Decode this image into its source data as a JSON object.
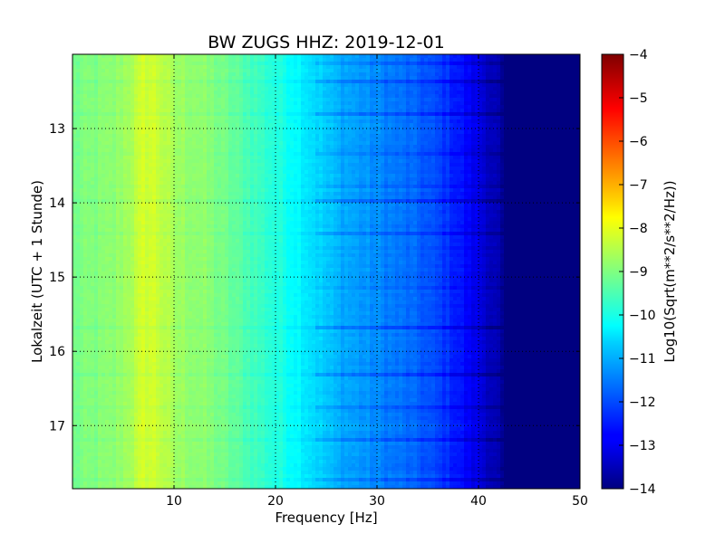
{
  "chart_data": {
    "type": "heatmap",
    "title": "BW ZUGS HHZ: 2019-12-01",
    "xlabel": "Frequency [Hz]",
    "ylabel": "Lokalzeit (UTC + 1 Stunde)",
    "xlim": [
      0,
      50
    ],
    "ylim": [
      12.0,
      17.85
    ],
    "y_inverted": true,
    "x_ticks": [
      10,
      20,
      30,
      40,
      50
    ],
    "y_ticks": [
      13,
      14,
      15,
      16,
      17
    ],
    "grid": true,
    "colormap": "jet",
    "colorbar": {
      "label": "Log10(Sqrt(m**2/s**2/Hz))",
      "range": [
        -14,
        -4
      ],
      "ticks": [
        -4,
        -5,
        -6,
        -7,
        -8,
        -9,
        -10,
        -11,
        -12,
        -13,
        -14
      ]
    },
    "frequency_profile": {
      "freq_hz": [
        0,
        2,
        4,
        6,
        7,
        8,
        9,
        10,
        12,
        14,
        16,
        18,
        20,
        22,
        24,
        26,
        28,
        30,
        32,
        34,
        36,
        38,
        39,
        40,
        41,
        42,
        42.5,
        45,
        50
      ],
      "log10_amp": [
        -9.1,
        -9.0,
        -8.9,
        -8.5,
        -8.2,
        -8.2,
        -8.4,
        -8.7,
        -8.8,
        -9.0,
        -9.3,
        -9.6,
        -9.9,
        -10.2,
        -10.6,
        -11.0,
        -11.2,
        -11.4,
        -11.6,
        -11.8,
        -12.1,
        -12.5,
        -12.8,
        -13.0,
        -13.3,
        -13.6,
        -14.0,
        -14.0,
        -14.0
      ]
    },
    "time_range_hours": [
      12.0,
      17.85
    ]
  },
  "colors": {
    "background": "#ffffff",
    "axis": "#000000",
    "grid": "#000000"
  }
}
